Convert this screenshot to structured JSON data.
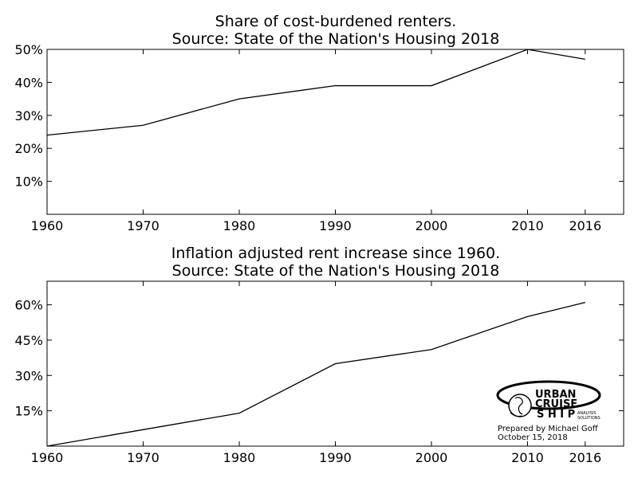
{
  "chart_data": [
    {
      "type": "line",
      "title_line1": "Share of cost-burdened renters.",
      "title_line2": "Source: State of the Nation's Housing 2018",
      "x": [
        1960,
        1970,
        1980,
        1990,
        2000,
        2010,
        2016
      ],
      "series": [
        {
          "values": [
            24,
            27,
            35,
            39,
            39,
            50,
            47
          ]
        }
      ],
      "xlim": [
        1960,
        2020
      ],
      "ylim": [
        0,
        50
      ],
      "x_ticks": [
        1960,
        1970,
        1980,
        1990,
        2000,
        2010,
        2016
      ],
      "x_tick_labels": [
        "1960",
        "1970",
        "1980",
        "1990",
        "2000",
        "2010",
        "2016"
      ],
      "y_ticks": [
        10,
        20,
        30,
        40,
        50
      ],
      "y_tick_labels": [
        "10%",
        "20%",
        "30%",
        "40%",
        "50%"
      ],
      "grid": false
    },
    {
      "type": "line",
      "title_line1": "Inflation adjusted rent increase since 1960.",
      "title_line2": "Source: State of the Nation's Housing 2018",
      "x": [
        1960,
        1970,
        1980,
        1990,
        2000,
        2010,
        2016
      ],
      "series": [
        {
          "values": [
            0,
            7,
            14,
            35,
            41,
            55,
            61
          ]
        }
      ],
      "xlim": [
        1960,
        2020
      ],
      "ylim": [
        0,
        70
      ],
      "x_ticks": [
        1960,
        1970,
        1980,
        1990,
        2000,
        2010,
        2016
      ],
      "x_tick_labels": [
        "1960",
        "1970",
        "1980",
        "1990",
        "2000",
        "2010",
        "2016"
      ],
      "y_ticks": [
        15,
        30,
        45,
        60
      ],
      "y_tick_labels": [
        "15%",
        "30%",
        "45%",
        "60%"
      ],
      "grid": false
    }
  ],
  "logo": {
    "line1": "URBAN",
    "line2": "CRUISE",
    "line3": "SHIP",
    "line3_display": "S H I P",
    "tag1": "ANALYSIS",
    "tag2": "SOLUTIONS",
    "prepared_by": "Prepared by Michael Goff",
    "date": "October 15, 2018"
  }
}
